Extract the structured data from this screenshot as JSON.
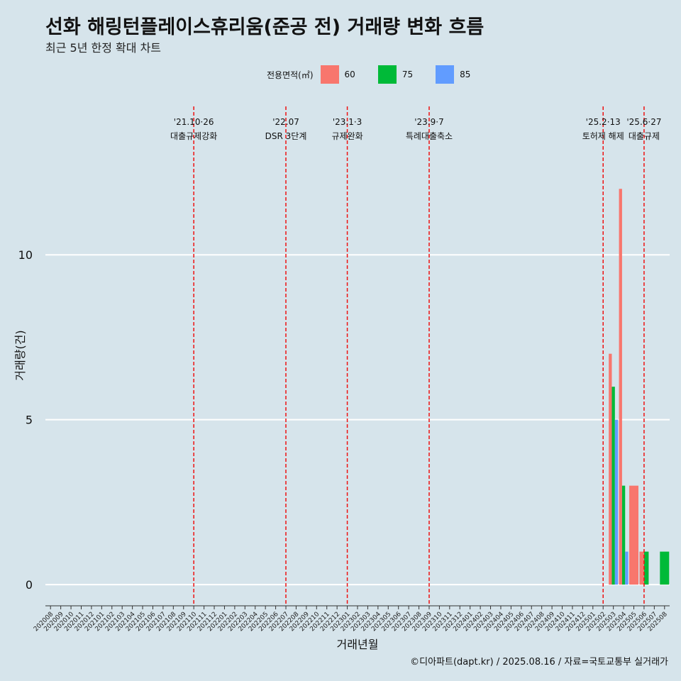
{
  "title": "선화 해링턴플레이스휴리움(준공 전) 거래량 변화 흐름",
  "subtitle": "최근 5년 한정 확대 차트",
  "caption": "©디아파트(dapt.kr) / 2025.08.16 / 자료=국토교통부 실거래가",
  "legend": {
    "title": "전용면적(㎡)",
    "items": [
      {
        "label": "60",
        "color": "#f8766d"
      },
      {
        "label": "75",
        "color": "#00ba38"
      },
      {
        "label": "85",
        "color": "#619cff"
      }
    ]
  },
  "chart_data": {
    "type": "bar",
    "xlabel": "거래년월",
    "ylabel": "거래량(건)",
    "ylim": [
      -0.6,
      14.5
    ],
    "yticks": [
      0,
      5,
      10
    ],
    "categories": [
      "202008",
      "202009",
      "202010",
      "202011",
      "202012",
      "202101",
      "202102",
      "202103",
      "202104",
      "202105",
      "202106",
      "202107",
      "202108",
      "202109",
      "202110",
      "202111",
      "202112",
      "202201",
      "202202",
      "202203",
      "202204",
      "202205",
      "202206",
      "202207",
      "202208",
      "202209",
      "202210",
      "202211",
      "202212",
      "202301",
      "202302",
      "202303",
      "202304",
      "202305",
      "202306",
      "202307",
      "202308",
      "202309",
      "202310",
      "202311",
      "202312",
      "202401",
      "202402",
      "202403",
      "202404",
      "202405",
      "202406",
      "202407",
      "202408",
      "202409",
      "202410",
      "202411",
      "202412",
      "202501",
      "202502",
      "202503",
      "202504",
      "202505",
      "202506",
      "202507",
      "202508"
    ],
    "series": [
      {
        "name": "60",
        "color": "#f8766d",
        "values": {
          "202503": 7,
          "202504": 12,
          "202505": 3,
          "202506": 1
        }
      },
      {
        "name": "75",
        "color": "#00ba38",
        "values": {
          "202503": 6,
          "202504": 3,
          "202506": 1,
          "202508": 1
        }
      },
      {
        "name": "85",
        "color": "#619cff",
        "values": {
          "202503": 5,
          "202504": 1
        }
      }
    ],
    "events": [
      {
        "month": "202110",
        "date": "'21.10·26",
        "label": "대출규제강화"
      },
      {
        "month": "202207",
        "date": "'22.07",
        "label": "DSR 3단계"
      },
      {
        "month": "202301",
        "date": "'23.1·3",
        "label": "규제완화"
      },
      {
        "month": "202309",
        "date": "'23.9·7",
        "label": "특례대출축소"
      },
      {
        "month": "202502",
        "date": "'25.2·13",
        "label": "토허제 해제"
      },
      {
        "month": "202506",
        "date": "'25.6·27",
        "label": "대출규제"
      }
    ]
  }
}
